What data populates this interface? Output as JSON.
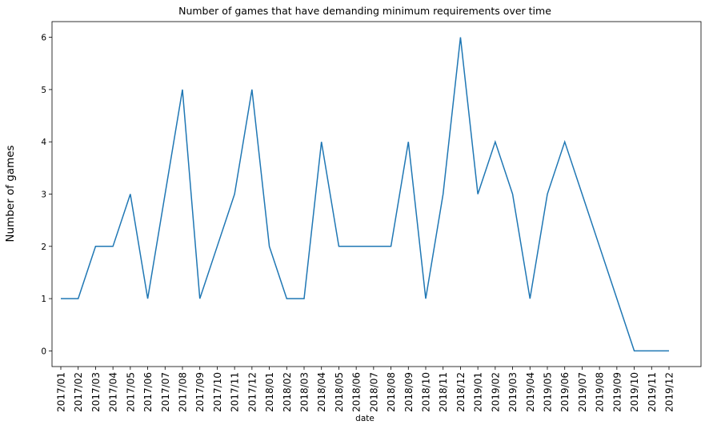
{
  "chart_data": {
    "type": "line",
    "title": "Number of games that have demanding minimum requirements over time",
    "xlabel": "date",
    "ylabel": "Number of games",
    "ylim": [
      -0.3,
      6.3
    ],
    "yticks": [
      0,
      1,
      2,
      3,
      4,
      5,
      6
    ],
    "grid": false,
    "color": "#1f77b4",
    "categories": [
      "2017/01",
      "2017/02",
      "2017/03",
      "2017/04",
      "2017/05",
      "2017/06",
      "2017/07",
      "2017/08",
      "2017/09",
      "2017/10",
      "2017/11",
      "2017/12",
      "2018/01",
      "2018/02",
      "2018/03",
      "2018/04",
      "2018/05",
      "2018/06",
      "2018/07",
      "2018/08",
      "2018/09",
      "2018/10",
      "2018/11",
      "2018/12",
      "2019/01",
      "2019/02",
      "2019/03",
      "2019/04",
      "2019/05",
      "2019/06",
      "2019/07",
      "2019/08",
      "2019/09",
      "2019/10",
      "2019/11",
      "2019/12"
    ],
    "values": [
      1,
      1,
      2,
      2,
      3,
      1,
      3,
      5,
      1,
      2,
      3,
      5,
      2,
      1,
      1,
      4,
      2,
      2,
      2,
      2,
      4,
      1,
      3,
      6,
      3,
      4,
      3,
      1,
      3,
      4,
      3,
      2,
      1,
      0,
      0,
      0
    ]
  }
}
